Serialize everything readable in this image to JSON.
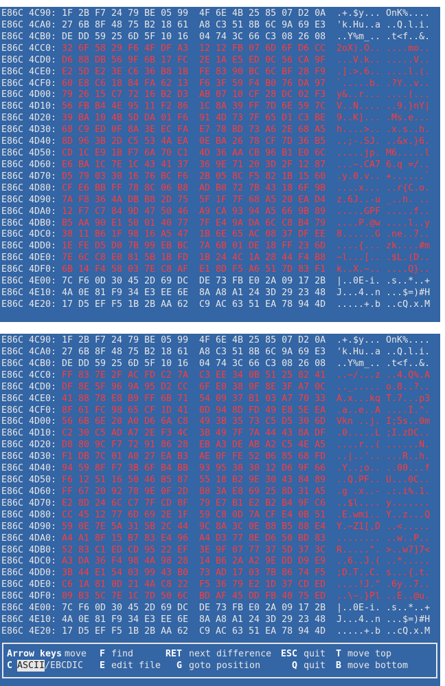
{
  "panes": [
    {
      "rows": [
        {
          "address": "E86C 4C90:",
          "hex1": "1F 2B F7 24 79 BE 05 99",
          "hex2": "4F 6E 4B 25 85 07 D2 0A",
          "ascii": ".+.$y... OnK%....",
          "diff": false
        },
        {
          "address": "E86C 4CA0:",
          "hex1": "27 6B 8F 48 75 B2 18 61",
          "hex2": "A8 C3 51 8B 6C 9A 69 E3",
          "ascii": "'k.Hu..a ..Q.l.i.",
          "diff": false
        },
        {
          "address": "E86C 4CB0:",
          "hex1": "DE DD 59 25 6D 5F 10 16",
          "hex2": "04 74 3C 66 C3 08 26 08",
          "ascii": "..Y%m_.. .t<f..&.",
          "diff": false
        },
        {
          "address": "E86C 4CC0:",
          "hex1": "32 6F 58 29 F6 4F DF A3",
          "hex2": "12 12 FB 07 6D 6F D6 CC",
          "ascii": "2oX).O.. ....mo..",
          "diff": true
        },
        {
          "address": "E86C 4CD0:",
          "hex1": "D6 88 DB 56 9F 6B 17 FC",
          "hex2": "2E 1A E5 ED 0C 56 CA 9F",
          "ascii": "...V.k.. .....V..",
          "diff": true
        },
        {
          "address": "E86C 4CE0:",
          "hex1": "E2 5D E2 3E C6 36 B8 1B",
          "hex2": "FE 83 90 BC 6C BF 28 F9",
          "ascii": ".].>.6.. ....l.(.",
          "diff": true
        },
        {
          "address": "E86C 4CF0:",
          "hex1": "60 E8 C6 18 84 FA 62 13",
          "hex2": "F6 3F 59 F4 B0 76 DA 97",
          "ascii": "`.....b. .?Y..v..",
          "diff": true
        },
        {
          "address": "E86C 4D00:",
          "hex1": "79 26 15 C7 72 16 B2 D3",
          "hex2": "AB 07 10 CF 28 DC 02 F3",
          "ascii": "y&..r... ....(...",
          "diff": true
        },
        {
          "address": "E86C 4D10:",
          "hex1": "56 FB B4 4E 95 11 F2 86",
          "hex2": "1C 8A 39 FF 7D 6E 59 7C",
          "ascii": "V..N.... ..9.}nY|",
          "diff": true
        },
        {
          "address": "E86C 4D20:",
          "hex1": "39 BA 10 4B 5D DA 01 F6",
          "hex2": "91 4D 73 7F 65 D1 C3 BE",
          "ascii": "9..K]... .Ms.e...",
          "diff": true
        },
        {
          "address": "E86C 4D30:",
          "hex1": "68 C9 ED 0F 8A 3E EC FA",
          "hex2": "E7 78 BD 73 A6 2E 68 A5",
          "ascii": "h....>.. .x.s..h.",
          "diff": true
        },
        {
          "address": "E86C 4D40:",
          "hex1": "8D 96 3B 2D C5 53 4A EA",
          "hex2": "0E BA 26 78 CF 7D 36 B5",
          "ascii": "..;-.SJ. ..&x.}6.",
          "diff": true
        },
        {
          "address": "E86C 4D50:",
          "hex1": "CD 1C E9 1B F7 6A 70 C1",
          "hex2": "4D 36 AA CB 96 B1 E0 6C",
          "ascii": ".....jp. M6.....l",
          "diff": true
        },
        {
          "address": "E86C 4D60:",
          "hex1": "E6 BA 1C 7E 1C 43 41 37",
          "hex2": "36 9E 71 20 3D 2F 12 87",
          "ascii": "...~.CA7 6.q =/..",
          "diff": true
        },
        {
          "address": "E86C 4D70:",
          "hex1": "D5 79 03 30 16 76 BC F6",
          "hex2": "2B 05 8C F5 82 1B 15 60",
          "ascii": ".y.0.v.. +......`",
          "diff": true
        },
        {
          "address": "E86C 4D80:",
          "hex1": "CF E6 BB FF 78 8C 06 B8",
          "hex2": "AD B0 72 7B 43 18 6F 9B",
          "ascii": "....x... ..r{C.o.",
          "diff": true
        },
        {
          "address": "E86C 4D90:",
          "hex1": "7A F8 36 4A DB B8 2D 75",
          "hex2": "5F 1F 7F 68 A5 20 EA D4",
          "ascii": "z.6J..-u _..h. ..",
          "diff": true
        },
        {
          "address": "E86C 4DA0:",
          "hex1": "12 F7 C7 84 9D 47 50 46",
          "hex2": "A9 CA 93 94 A5 66 9B 89",
          "ascii": ".....GPF .....f..",
          "diff": true
        },
        {
          "address": "E86C 4DB0:",
          "hex1": "B5 AA 90 E1 50 01 40 77",
          "hex2": "7F E4 9A DA 6C C8 B4 79",
          "ascii": "....P.@w ....l..y",
          "diff": true
        },
        {
          "address": "E86C 4DC0:",
          "hex1": "38 11 B6 1F 98 16 A5 47",
          "hex2": "1B 6E 65 AC 08 37 DF EE",
          "ascii": "8......G .ne..7..",
          "diff": true
        },
        {
          "address": "E86C 4DD0:",
          "hex1": "1E FE D5 D0 7B 99 EB BC",
          "hex2": "7A 6B 01 DE 18 FF 23 6D",
          "ascii": "....{... zk....#m",
          "diff": true
        },
        {
          "address": "E86C 4DE0:",
          "hex1": "7E 6C C8 E0 81 5B 1B FD",
          "hex2": "1B 24 4C 1A 28 44 F4 B8",
          "ascii": "~l...[.. .$L.(D..",
          "diff": true
        },
        {
          "address": "E86C 4DF0:",
          "hex1": "6B 14 F4 58 03 7E C8 AF",
          "hex2": "E1 8D F5 A6 51 7D 83 F1",
          "ascii": "k..X.~.. ....Q}..",
          "diff": true
        },
        {
          "address": "E86C 4E00:",
          "hex1": "7C F6 0D 30 45 2D 69 DC",
          "hex2": "DE 73 FB E0 2A 09 17 2B",
          "ascii": "|..0E-i. .s..*..+",
          "diff": false
        },
        {
          "address": "E86C 4E10:",
          "hex1": "4A 0E 81 F9 34 E3 EE 6E",
          "hex2": "8A A8 A1 24 3D 29 23 48",
          "ascii": "J...4..n ...$=)#H",
          "diff": false
        },
        {
          "address": "E86C 4E20:",
          "hex1": "17 D5 EF F5 1B 2B AA 62",
          "hex2": "C9 AC 63 51 EA 78 94 4D",
          "ascii": ".....+.b ..cQ.x.M",
          "diff": false
        }
      ]
    },
    {
      "rows": [
        {
          "address": "E86C 4C90:",
          "hex1": "1F 2B F7 24 79 BE 05 99",
          "hex2": "4F 6E 4B 25 85 07 D2 0A",
          "ascii": ".+.$y... OnK%....",
          "diff": false
        },
        {
          "address": "E86C 4CA0:",
          "hex1": "27 6B 8F 48 75 B2 18 61",
          "hex2": "A8 C3 51 8B 6C 9A 69 E3",
          "ascii": "'k.Hu..a ..Q.l.i.",
          "diff": false
        },
        {
          "address": "E86C 4CB0:",
          "hex1": "DE DD 59 25 6D 5F 10 16",
          "hex2": "04 74 3C 66 C3 08 26 08",
          "ascii": "..Y%m_.. .t<f..&.",
          "diff": false
        },
        {
          "address": "E86C 4CC0:",
          "hex1": "FF 83 7E 2F AC FD C2 7A",
          "hex2": "C3 EE 34 0B 51 25 82 41",
          "ascii": "..~/...z ..4.Q%.A",
          "diff": true
        },
        {
          "address": "E86C 4CD0:",
          "hex1": "DF 8E 5F 96 9A 95 D2 CC",
          "hex2": "6F E0 38 0F 8E 3F A7 0C",
          "ascii": ".._..... o.8..?..",
          "diff": true
        },
        {
          "address": "E86C 4CE0:",
          "hex1": "41 88 78 E8 B9 FF 6B 71",
          "hex2": "54 09 37 B1 03 A7 70 33",
          "ascii": "A.x...kq T.7...p3",
          "diff": true
        },
        {
          "address": "E86C 4CF0:",
          "hex1": "8F 61 FC 98 65 CF 1D 41",
          "hex2": "0D 94 8D FD 49 E8 5E EA",
          "ascii": ".a..e..A ....I.^.",
          "diff": true
        },
        {
          "address": "E86C 4D00:",
          "hex1": "56 6B 6E 20 A0 D6 6A C8",
          "hex2": "49 3B 35 73 C5 D5 30 6D",
          "ascii": "Vkn ..j. I;5s..0m",
          "diff": true
        },
        {
          "address": "E86C 4D10:",
          "hex1": "C2 30 C5 AD A7 2E F3 4C",
          "hex2": "3B 49 7F 7A 44 43 8A DF",
          "ascii": ".0.....L ;I.zDC..",
          "diff": true
        },
        {
          "address": "E86C 4D20:",
          "hex1": "D8 80 9C F7 72 91 86 28",
          "hex2": "EB A3 DE AB A2 C5 4E A5",
          "ascii": "....r..( ......N.",
          "diff": true
        },
        {
          "address": "E86C 4D30:",
          "hex1": "F1 DB 7C 01 A0 27 EA B3",
          "hex2": "AE 0F FE 52 06 85 68 FD",
          "ascii": "..|..'.. ...R..h.",
          "diff": true
        },
        {
          "address": "E86C 4D40:",
          "hex1": "94 59 8F F7 3B 6F B4 BB",
          "hex2": "93 95 30 30 12 D6 9F 66",
          "ascii": ".Y..;o.. ..00...f",
          "diff": true
        },
        {
          "address": "E86C 4D50:",
          "hex1": "F6 12 51 16 50 46 B5 87",
          "hex2": "55 18 B2 9E 30 43 84 89",
          "ascii": "..Q.PF.. U...0C..",
          "diff": true
        },
        {
          "address": "E86C 4D60:",
          "hex1": "FF 67 20 92 78 9E 0F 2D",
          "hex2": "80 3A E8 69 25 8D 31 A5",
          "ascii": ".g .x..- .:.i%.1.",
          "diff": true
        },
        {
          "address": "E86C 4D70:",
          "hex1": "E2 8D 24 6C C7 7F CD 8F",
          "hex2": "79 E7 B1 E2 B2 B4 9F C6",
          "ascii": "..$l.... y.......",
          "diff": true
        },
        {
          "address": "E86C 4D80:",
          "hex1": "CC 45 12 77 6D 69 2E 1F",
          "hex2": "59 C8 0D 7A CF E4 0B 51",
          "ascii": ".E.wmi.. Y..z...Q",
          "diff": true
        },
        {
          "address": "E86C 4D90:",
          "hex1": "59 0E 7E 5A 31 5B 2C 44",
          "hex2": "9C 8A 3C 0E 88 B5 88 E4",
          "ascii": "Y.~Z1[,D ..<.....",
          "diff": true
        },
        {
          "address": "E86C 4DA0:",
          "hex1": "A4 A1 8F 15 B7 83 E4 96",
          "hex2": "A4 D3 77 8E D6 50 BD 83",
          "ascii": "........ ..w..P..",
          "diff": true
        },
        {
          "address": "E86C 4DB0:",
          "hex1": "52 83 C1 ED CD 95 22 EF",
          "hex2": "3E 9F 07 77 37 5D 37 3C",
          "ascii": "R.....\". >..w7]7<",
          "diff": true
        },
        {
          "address": "E86C 4DC0:",
          "hex1": "A3 DA 36 F4 98 4A 98 28",
          "hex2": "14 B6 2A A2 9E DD D9 E9",
          "ascii": "..6..J.( ..*.....",
          "diff": true
        },
        {
          "address": "E86C 4DD0:",
          "hex1": "3B 44 E1 54 03 99 43 B0",
          "hex2": "73 AD 17 03 7B 86 74 F5",
          "ascii": ";D.T..C. s...{.t.",
          "diff": true
        },
        {
          "address": "E86C 4DE0:",
          "hex1": "C6 1A 81 0D 21 4A C8 22",
          "hex2": "F5 36 79 E2 1D 37 CD ED",
          "ascii": "....!J.\" .6y..7..",
          "diff": true
        },
        {
          "address": "E86C 4DF0:",
          "hex1": "09 B3 5C 7E 1C 7D 50 6C",
          "hex2": "BD AF 45 DD FB 40 75 ED",
          "ascii": "..\\~.}Pl ..E..@u.",
          "diff": true
        },
        {
          "address": "E86C 4E00:",
          "hex1": "7C F6 0D 30 45 2D 69 DC",
          "hex2": "DE 73 FB E0 2A 09 17 2B",
          "ascii": "|..0E-i. .s..*..+",
          "diff": false
        },
        {
          "address": "E86C 4E10:",
          "hex1": "4A 0E 81 F9 34 E3 EE 6E",
          "hex2": "8A A8 A1 24 3D 29 23 48",
          "ascii": "J...4..n ...$=)#H",
          "diff": false
        },
        {
          "address": "E86C 4E20:",
          "hex1": "17 D5 EF F5 1B 2B AA 62",
          "hex2": "C9 AC 63 51 EA 78 94 4D",
          "ascii": ".....+.b ..cQ.x.M",
          "diff": false
        }
      ]
    }
  ],
  "footer": [
    [
      {
        "key": "Arrow keys",
        "desc": "move"
      },
      {
        "key": "F",
        "desc": "find"
      },
      {
        "key": "RET",
        "desc": "next difference"
      },
      {
        "key": "ESC",
        "desc": "quit"
      },
      {
        "key": "T",
        "desc": "move top"
      }
    ],
    [
      {
        "key": "C",
        "highlight": "ASCII",
        "desc": "/EBCDIC"
      },
      {
        "key": "E",
        "desc": "edit file"
      },
      {
        "key": "G",
        "desc": "goto position"
      },
      {
        "key": "Q",
        "desc": "quit"
      },
      {
        "key": "B",
        "desc": "move bottom"
      }
    ]
  ]
}
